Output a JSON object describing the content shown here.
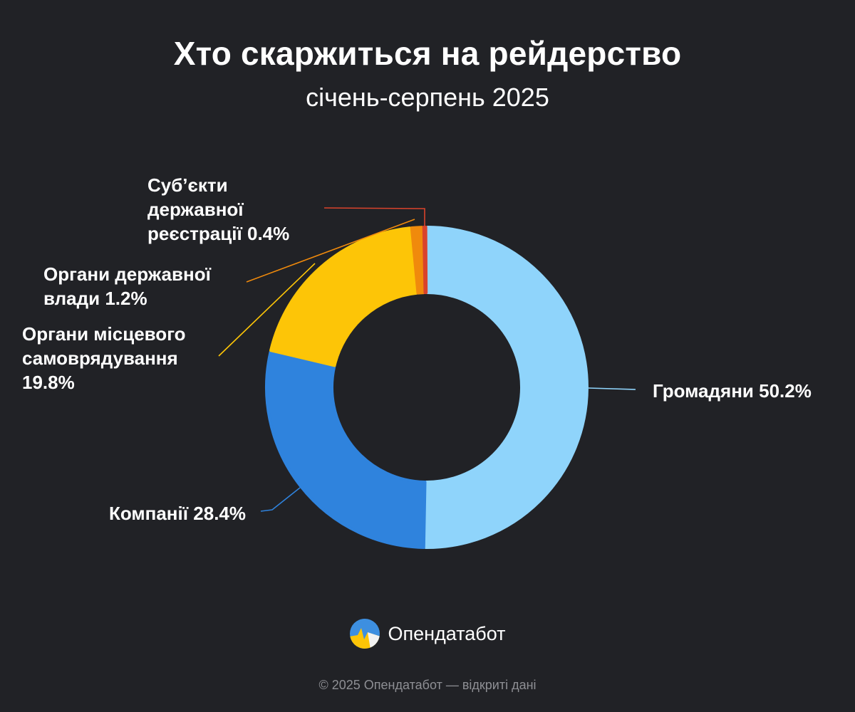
{
  "title": "Хто скаржиться на рейдерство",
  "subtitle": "січень-серпень 2025",
  "brand": {
    "name": "Опендатабот"
  },
  "footer": "© 2025 Опендатабот — відкриті дані",
  "chart_data": {
    "type": "pie",
    "variant": "donut",
    "title": "Хто скаржиться на рейдерство",
    "subtitle": "січень-серпень 2025",
    "slices": [
      {
        "label": "Громадяни",
        "value": 50.2,
        "value_label": "50.2%",
        "color": "#8fd4fb",
        "label_lines": [
          "Громадяни 50.2%"
        ]
      },
      {
        "label": "Компанії",
        "value": 28.4,
        "value_label": "28.4%",
        "color": "#2f83dd",
        "label_lines": [
          "Компанії 28.4%"
        ]
      },
      {
        "label": "Органи місцевого самоврядування",
        "value": 19.8,
        "value_label": "19.8%",
        "color": "#fdc507",
        "label_lines": [
          "Органи місцевого",
          "самоврядування",
          "19.8%"
        ]
      },
      {
        "label": "Органи державної влади",
        "value": 1.2,
        "value_label": "1.2%",
        "color": "#f08a0c",
        "label_lines": [
          "Органи державної",
          "влади 1.2%"
        ]
      },
      {
        "label": "Суб’єкти державної реєстрації",
        "value": 0.4,
        "value_label": "0.4%",
        "color": "#d9432c",
        "label_lines": [
          "Суб’єкти",
          "державної",
          "реєстрації 0.4%"
        ]
      }
    ],
    "start_angle": "12 o'clock",
    "direction": "clockwise",
    "legend": "none"
  }
}
